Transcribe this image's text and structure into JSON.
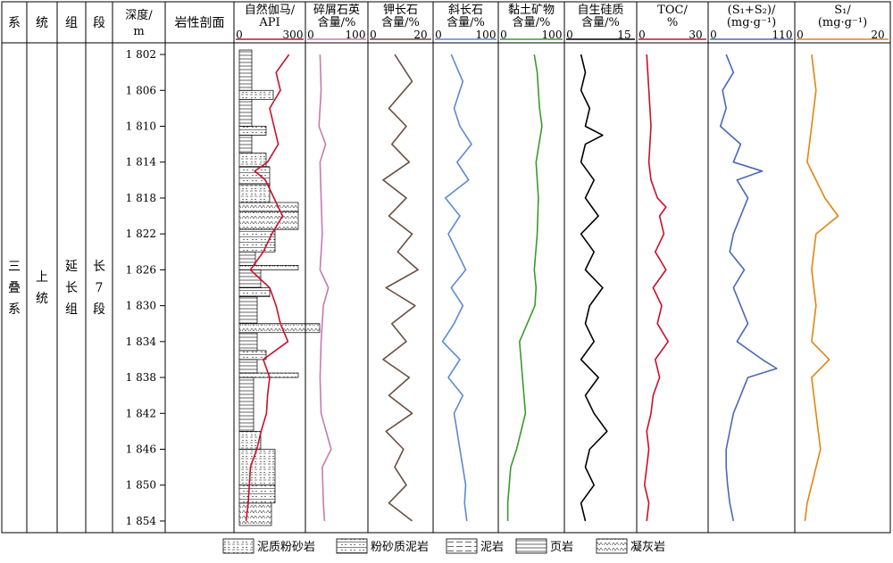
{
  "strat_headers": [
    "系",
    "统",
    "组",
    "段"
  ],
  "strat_values": [
    "三叠系",
    "上统",
    "延长组",
    "长7段"
  ],
  "depth_header": [
    "深度/",
    "m"
  ],
  "lithology_header": "岩性剖面",
  "chart_data": {
    "type": "line",
    "y_axis": {
      "label": "深度/m",
      "range": [
        1801,
        1855
      ],
      "ticks": [
        "1 802",
        "1 806",
        "1 810",
        "1 814",
        "1 818",
        "1 822",
        "1 826",
        "1 830",
        "1 834",
        "1 838",
        "1 842",
        "1 846",
        "1 850",
        "1 854"
      ],
      "tick_values": [
        1802,
        1806,
        1810,
        1814,
        1818,
        1822,
        1826,
        1830,
        1834,
        1838,
        1842,
        1846,
        1850,
        1854
      ],
      "grid": false
    },
    "tracks": [
      {
        "title": [
          "自然伽马/",
          "API"
        ],
        "min_label": "0",
        "max_label": "300",
        "xlim": [
          0,
          300
        ],
        "color": "#c8102e",
        "depth": [
          1802,
          1804,
          1806,
          1808,
          1810,
          1812,
          1814,
          1815,
          1816,
          1818,
          1820,
          1822,
          1824,
          1826,
          1828,
          1830,
          1832,
          1834,
          1836,
          1838,
          1840,
          1842,
          1844,
          1846,
          1848,
          1850,
          1852,
          1854
        ],
        "values": [
          240,
          180,
          200,
          150,
          170,
          190,
          140,
          80,
          130,
          170,
          210,
          160,
          120,
          60,
          150,
          180,
          200,
          235,
          120,
          150,
          140,
          135,
          110,
          90,
          60,
          55,
          50,
          40
        ]
      },
      {
        "title": [
          "碎屑石英",
          "含量/%"
        ],
        "min_label": "0",
        "max_label": "100",
        "xlim": [
          0,
          100
        ],
        "color": "#c77aae",
        "depth": [
          1802,
          1806,
          1810,
          1812,
          1814,
          1818,
          1822,
          1826,
          1828,
          1830,
          1834,
          1838,
          1842,
          1846,
          1848,
          1852,
          1854
        ],
        "values": [
          20,
          22,
          18,
          30,
          20,
          22,
          24,
          20,
          35,
          26,
          22,
          20,
          22,
          40,
          24,
          26,
          28
        ]
      },
      {
        "title": [
          "钾长石",
          "含量/%"
        ],
        "min_label": "0",
        "max_label": "20",
        "xlim": [
          0,
          20
        ],
        "color": "#6b4f3f",
        "depth": [
          1802,
          1805,
          1808,
          1810,
          1812,
          1814,
          1816,
          1818,
          1820,
          1822,
          1824,
          1826,
          1828,
          1830,
          1832,
          1834,
          1836,
          1838,
          1840,
          1842,
          1844,
          1846,
          1848,
          1850,
          1852,
          1854
        ],
        "values": [
          8,
          14,
          6,
          12,
          7,
          13,
          4,
          12,
          6,
          14,
          9,
          16,
          5,
          15,
          7,
          12,
          4,
          13,
          6,
          14,
          5,
          11,
          8,
          12,
          6,
          14
        ]
      },
      {
        "title": [
          "斜长石",
          "含量/%"
        ],
        "min_label": "0",
        "max_label": "100",
        "xlim": [
          0,
          100
        ],
        "color": "#5b8ad0",
        "depth": [
          1802,
          1805,
          1808,
          1810,
          1812,
          1814,
          1816,
          1818,
          1820,
          1822,
          1824,
          1826,
          1828,
          1830,
          1832,
          1834,
          1836,
          1838,
          1840,
          1842,
          1844,
          1846,
          1848,
          1850,
          1852,
          1854
        ],
        "values": [
          25,
          45,
          30,
          40,
          60,
          35,
          55,
          15,
          40,
          20,
          35,
          50,
          25,
          45,
          30,
          10,
          40,
          20,
          45,
          30,
          35,
          40,
          45,
          50,
          48,
          52
        ]
      },
      {
        "title": [
          "黏土矿物",
          "含量/%"
        ],
        "min_label": "0",
        "max_label": "100",
        "xlim": [
          0,
          100
        ],
        "color": "#3a9a2e",
        "depth": [
          1802,
          1804,
          1806,
          1808,
          1810,
          1814,
          1818,
          1822,
          1826,
          1828,
          1830,
          1834,
          1838,
          1842,
          1846,
          1848,
          1852,
          1854
        ],
        "values": [
          55,
          60,
          62,
          64,
          68,
          58,
          62,
          60,
          55,
          58,
          56,
          30,
          35,
          40,
          25,
          15,
          10,
          10
        ]
      },
      {
        "title": [
          "自生硅质",
          "含量/%"
        ],
        "min_label": "0",
        "max_label": "15",
        "xlim": [
          0,
          15
        ],
        "color": "#000000",
        "depth": [
          1802,
          1804,
          1806,
          1808,
          1810,
          1811,
          1812,
          1814,
          1816,
          1818,
          1820,
          1822,
          1824,
          1826,
          1828,
          1830,
          1832,
          1834,
          1836,
          1838,
          1840,
          1842,
          1844,
          1846,
          1848,
          1850,
          1852,
          1854
        ],
        "values": [
          3,
          4,
          3,
          5,
          4,
          8,
          4,
          3,
          6,
          4,
          7,
          3,
          6,
          4,
          8,
          5,
          4,
          6,
          3,
          7,
          4,
          6,
          9,
          5,
          4,
          6,
          3,
          4
        ]
      },
      {
        "title": [
          "TOC/",
          "%"
        ],
        "min_label": "0",
        "max_label": "30",
        "xlim": [
          0,
          30
        ],
        "color": "#c8102e",
        "depth": [
          1802,
          1806,
          1810,
          1814,
          1816,
          1818,
          1819,
          1820,
          1822,
          1824,
          1826,
          1828,
          1830,
          1832,
          1834,
          1836,
          1838,
          1840,
          1842,
          1844,
          1846,
          1848,
          1850,
          1852,
          1854
        ],
        "values": [
          3,
          4,
          5,
          4,
          5,
          8,
          12,
          9,
          11,
          7,
          12,
          6,
          10,
          8,
          13,
          7,
          9,
          6,
          5,
          3,
          4,
          3,
          2,
          4,
          3
        ]
      },
      {
        "title": [
          "(S₁+S₂)/",
          "(mg·g⁻¹)"
        ],
        "min_label": "0",
        "max_label": "110",
        "xlim": [
          0,
          110
        ],
        "color": "#4a68b8",
        "depth": [
          1802,
          1804,
          1806,
          1808,
          1810,
          1812,
          1814,
          1815,
          1816,
          1818,
          1820,
          1822,
          1824,
          1826,
          1828,
          1830,
          1832,
          1834,
          1836,
          1837,
          1838,
          1840,
          1842,
          1844,
          1846,
          1848,
          1850,
          1852,
          1854
        ],
        "values": [
          20,
          30,
          15,
          20,
          12,
          40,
          30,
          70,
          35,
          50,
          40,
          30,
          25,
          45,
          30,
          40,
          50,
          35,
          70,
          90,
          50,
          40,
          30,
          25,
          20,
          20,
          22,
          25,
          30
        ]
      },
      {
        "title": [
          "S₁/",
          "(mg·g⁻¹)"
        ],
        "min_label": "0",
        "max_label": "20",
        "xlim": [
          0,
          20
        ],
        "color": "#e0860e",
        "depth": [
          1802,
          1806,
          1810,
          1814,
          1818,
          1820,
          1822,
          1826,
          1830,
          1834,
          1836,
          1838,
          1842,
          1846,
          1850,
          1852,
          1854
        ],
        "values": [
          3,
          4,
          3,
          2,
          6,
          9,
          4,
          3,
          4,
          3,
          7,
          3,
          4,
          5,
          3,
          2,
          1.5
        ]
      }
    ]
  },
  "legend": [
    "泥质粉砂岩",
    "粉砂质泥岩",
    "泥岩",
    "页岩",
    "凝灰岩"
  ]
}
